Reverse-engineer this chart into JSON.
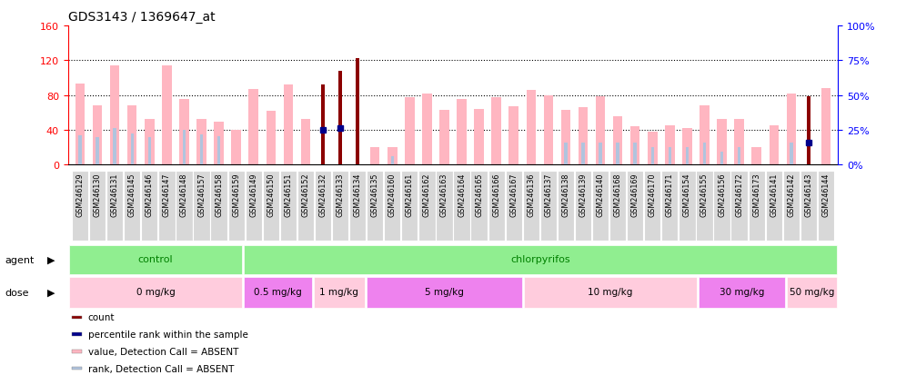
{
  "title": "GDS3143 / 1369647_at",
  "samples": [
    "GSM246129",
    "GSM246130",
    "GSM246131",
    "GSM246145",
    "GSM246146",
    "GSM246147",
    "GSM246148",
    "GSM246157",
    "GSM246158",
    "GSM246159",
    "GSM246149",
    "GSM246150",
    "GSM246151",
    "GSM246152",
    "GSM246132",
    "GSM246133",
    "GSM246134",
    "GSM246135",
    "GSM246160",
    "GSM246161",
    "GSM246162",
    "GSM246163",
    "GSM246164",
    "GSM246165",
    "GSM246166",
    "GSM246167",
    "GSM246136",
    "GSM246137",
    "GSM246138",
    "GSM246139",
    "GSM246140",
    "GSM246168",
    "GSM246169",
    "GSM246170",
    "GSM246171",
    "GSM246154",
    "GSM246155",
    "GSM246156",
    "GSM246172",
    "GSM246173",
    "GSM246141",
    "GSM246142",
    "GSM246143",
    "GSM246144"
  ],
  "value_absent": [
    93,
    68,
    114,
    68,
    52,
    114,
    75,
    52,
    49,
    40,
    87,
    62,
    92,
    52,
    null,
    null,
    null,
    20,
    20,
    77,
    82,
    63,
    75,
    64,
    77,
    67,
    86,
    80,
    63,
    66,
    79,
    56,
    44,
    38,
    45,
    42,
    68,
    52,
    52,
    20,
    45,
    82,
    null,
    88
  ],
  "rank_absent": [
    34,
    32,
    42,
    36,
    32,
    null,
    40,
    35,
    33,
    null,
    null,
    null,
    null,
    null,
    40,
    42,
    null,
    null,
    10,
    null,
    null,
    null,
    null,
    null,
    null,
    null,
    null,
    null,
    25,
    25,
    25,
    25,
    25,
    20,
    20,
    20,
    25,
    15,
    20,
    null,
    null,
    25,
    null,
    null
  ],
  "count_present": [
    null,
    null,
    null,
    null,
    null,
    null,
    null,
    null,
    null,
    null,
    null,
    null,
    null,
    null,
    92,
    108,
    122,
    null,
    null,
    null,
    null,
    null,
    null,
    null,
    null,
    null,
    null,
    null,
    null,
    null,
    null,
    null,
    null,
    null,
    null,
    null,
    null,
    null,
    null,
    null,
    null,
    null,
    79,
    null
  ],
  "percentile_present": [
    null,
    null,
    null,
    null,
    null,
    null,
    null,
    null,
    null,
    null,
    null,
    null,
    null,
    null,
    40,
    42,
    null,
    null,
    null,
    null,
    null,
    null,
    null,
    null,
    null,
    null,
    null,
    null,
    null,
    null,
    null,
    null,
    null,
    null,
    null,
    null,
    null,
    null,
    null,
    null,
    null,
    null,
    25,
    null
  ],
  "agent_groups": [
    {
      "label": "control",
      "start": 0,
      "end": 10
    },
    {
      "label": "chlorpyrifos",
      "start": 10,
      "end": 44
    }
  ],
  "dose_groups": [
    {
      "label": "0 mg/kg",
      "start": 0,
      "end": 10,
      "color": "#ffccdd"
    },
    {
      "label": "0.5 mg/kg",
      "start": 10,
      "end": 14,
      "color": "#ee82ee"
    },
    {
      "label": "1 mg/kg",
      "start": 14,
      "end": 17,
      "color": "#ffccdd"
    },
    {
      "label": "5 mg/kg",
      "start": 17,
      "end": 26,
      "color": "#ee82ee"
    },
    {
      "label": "10 mg/kg",
      "start": 26,
      "end": 36,
      "color": "#ffccdd"
    },
    {
      "label": "30 mg/kg",
      "start": 36,
      "end": 41,
      "color": "#ee82ee"
    },
    {
      "label": "50 mg/kg",
      "start": 41,
      "end": 44,
      "color": "#ffccdd"
    }
  ],
  "ylim_left": [
    0,
    160
  ],
  "ylim_right": [
    0,
    100
  ],
  "yticks_left": [
    0,
    40,
    80,
    120,
    160
  ],
  "yticks_right": [
    0,
    25,
    50,
    75,
    100
  ],
  "color_count": "#8b0000",
  "color_percentile": "#00008b",
  "color_value_absent": "#ffb6c1",
  "color_rank_absent": "#b0c4de",
  "agent_color": "#90ee90",
  "agent_text_color": "#008000",
  "legend_items": [
    {
      "color": "#8b0000",
      "label": "count"
    },
    {
      "color": "#00008b",
      "label": "percentile rank within the sample"
    },
    {
      "color": "#ffb6c1",
      "label": "value, Detection Call = ABSENT"
    },
    {
      "color": "#b0c4de",
      "label": "rank, Detection Call = ABSENT"
    }
  ]
}
